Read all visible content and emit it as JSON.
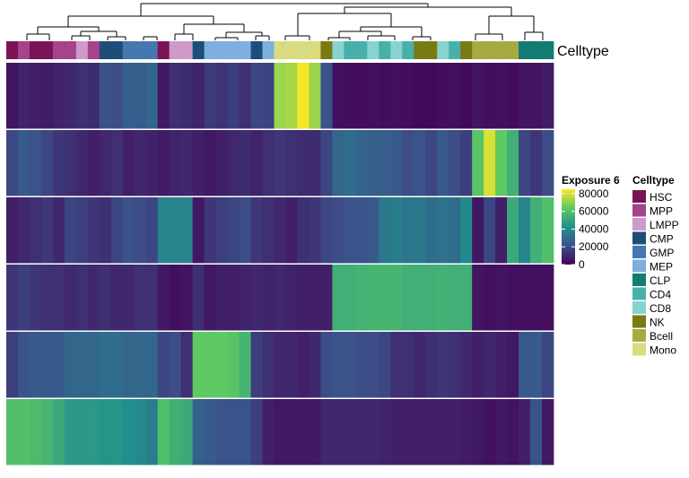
{
  "chart_data": {
    "type": "heatmap",
    "annotation_label": "Celltype",
    "color_scale": {
      "title": "Exposure 6",
      "min": 0,
      "max": 85000,
      "ticks": [
        0,
        20000,
        40000,
        60000,
        80000
      ],
      "tick_labels": [
        "0",
        "20000",
        "40000",
        "60000",
        "80000"
      ],
      "palette": "viridis"
    },
    "celltype_legend": {
      "title": "Celltype",
      "items": [
        {
          "name": "HSC",
          "color": "#7B1457"
        },
        {
          "name": "MPP",
          "color": "#A5438C"
        },
        {
          "name": "LMPP",
          "color": "#CE9AC8"
        },
        {
          "name": "CMP",
          "color": "#1D4E7A"
        },
        {
          "name": "GMP",
          "color": "#4478AE"
        },
        {
          "name": "MEP",
          "color": "#7FAFE0"
        },
        {
          "name": "CLP",
          "color": "#127B73"
        },
        {
          "name": "CD4",
          "color": "#48B0AB"
        },
        {
          "name": "CD8",
          "color": "#86D4CF"
        },
        {
          "name": "NK",
          "color": "#7A7A12"
        },
        {
          "name": "Bcell",
          "color": "#A9A942"
        },
        {
          "name": "Mono",
          "color": "#DADA7F"
        }
      ]
    },
    "column_celltypes": [
      "HSC",
      "MPP",
      "HSC",
      "HSC",
      "MPP",
      "MPP",
      "LMPP",
      "MPP",
      "CMP",
      "CMP",
      "GMP",
      "GMP",
      "GMP",
      "HSC",
      "LMPP",
      "LMPP",
      "CMP",
      "MEP",
      "MEP",
      "MEP",
      "MEP",
      "CMP",
      "MEP",
      "Mono",
      "Mono",
      "Mono",
      "Mono",
      "NK",
      "CD8",
      "CD4",
      "CD4",
      "CD8",
      "CD4",
      "CD8",
      "CD4",
      "NK",
      "NK",
      "CD8",
      "CD4",
      "NK",
      "Bcell",
      "Bcell",
      "Bcell",
      "Bcell",
      "CLP",
      "CLP",
      "CLP"
    ],
    "rows": [
      [
        5000,
        9000,
        8000,
        7000,
        9000,
        10000,
        12000,
        11000,
        22000,
        20000,
        26000,
        25000,
        28000,
        6000,
        12000,
        11000,
        9000,
        15000,
        13000,
        16000,
        12000,
        18000,
        17000,
        72000,
        74000,
        84000,
        72000,
        22000,
        4000,
        3000,
        3000,
        4000,
        3000,
        4000,
        3000,
        2000,
        2000,
        3000,
        4000,
        2000,
        5000,
        3000,
        4000,
        3000,
        5000,
        5000,
        7000
      ],
      [
        19000,
        24000,
        22000,
        18000,
        14000,
        12000,
        10000,
        8000,
        10000,
        12000,
        8000,
        10000,
        9000,
        7000,
        9000,
        10000,
        8000,
        6000,
        8000,
        10000,
        11000,
        9000,
        12000,
        14000,
        12000,
        11000,
        11000,
        18000,
        28000,
        30000,
        27000,
        26000,
        25000,
        24000,
        20000,
        22000,
        18000,
        24000,
        20000,
        16000,
        62000,
        80000,
        64000,
        54000,
        18000,
        14000,
        20000
      ],
      [
        8000,
        10000,
        12000,
        14000,
        10000,
        18000,
        16000,
        14000,
        12000,
        18000,
        22000,
        20000,
        18000,
        38000,
        38000,
        38000,
        6000,
        14000,
        16000,
        18000,
        20000,
        14000,
        12000,
        10000,
        8000,
        12000,
        14000,
        18000,
        20000,
        22000,
        22000,
        24000,
        34000,
        36000,
        34000,
        34000,
        30000,
        32000,
        30000,
        40000,
        6000,
        18000,
        8000,
        52000,
        38000,
        54000,
        60000
      ],
      [
        14000,
        16000,
        14000,
        12000,
        12000,
        10000,
        12000,
        10000,
        12000,
        10000,
        10000,
        12000,
        12000,
        6000,
        4000,
        5000,
        12000,
        6000,
        8000,
        8000,
        9000,
        10000,
        9000,
        10000,
        9000,
        8000,
        8000,
        8000,
        54000,
        54000,
        55000,
        56000,
        56000,
        56000,
        54000,
        54000,
        54000,
        55000,
        54000,
        54000,
        5000,
        4000,
        5000,
        4000,
        4000,
        4000,
        4000
      ],
      [
        16000,
        22000,
        24000,
        24000,
        24000,
        28000,
        28000,
        28000,
        30000,
        30000,
        28000,
        28000,
        28000,
        18000,
        20000,
        12000,
        64000,
        64000,
        64000,
        62000,
        56000,
        16000,
        12000,
        10000,
        10000,
        8000,
        10000,
        20000,
        22000,
        22000,
        20000,
        20000,
        18000,
        12000,
        12000,
        10000,
        12000,
        14000,
        12000,
        10000,
        8000,
        10000,
        8000,
        6000,
        24000,
        24000,
        18000
      ],
      [
        60000,
        60000,
        58000,
        56000,
        52000,
        46000,
        46000,
        46000,
        44000,
        44000,
        42000,
        40000,
        36000,
        60000,
        54000,
        52000,
        26000,
        24000,
        22000,
        22000,
        22000,
        16000,
        8000,
        6000,
        6000,
        6000,
        6000,
        10000,
        10000,
        10000,
        10000,
        10000,
        9000,
        8000,
        8000,
        8000,
        8000,
        8000,
        8000,
        7000,
        6000,
        4000,
        6000,
        5000,
        8000,
        22000,
        6000
      ]
    ]
  }
}
